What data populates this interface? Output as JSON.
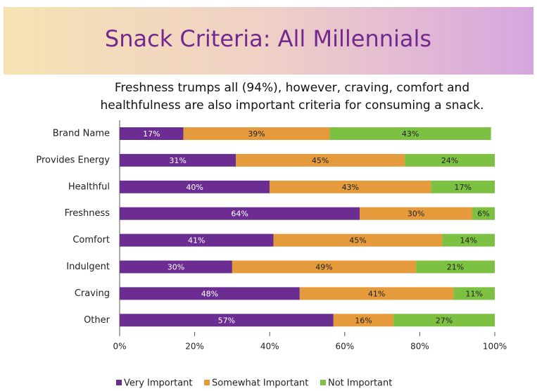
{
  "chart_data": {
    "type": "stacked_bar_horizontal",
    "title": "Snack Criteria: All Millennials",
    "subtitle": [
      "Freshness trumps all (94%), however, craving, comfort and",
      "healthfulness are also important criteria for consuming a snack."
    ],
    "categories": [
      "Brand Name",
      "Provides Energy",
      "Healthful",
      "Freshness",
      "Comfort",
      "Indulgent",
      "Craving",
      "Other"
    ],
    "series": [
      {
        "name": "Very Important",
        "color": "#6b2d91",
        "values": [
          17,
          31,
          40,
          64,
          41,
          30,
          48,
          57
        ],
        "value_labels": [
          "17%",
          "31%",
          "40%",
          "64%",
          "41%",
          "30%",
          "48%",
          "57%"
        ]
      },
      {
        "name": "Somewhat Important",
        "color": "#e59a3c",
        "values": [
          39,
          45,
          43,
          30,
          45,
          49,
          41,
          16
        ],
        "value_labels": [
          "39%",
          "45%",
          "43%",
          "30%",
          "45%",
          "49%",
          "41%",
          "16%"
        ]
      },
      {
        "name": "Not Important",
        "color": "#7cc142",
        "values": [
          43,
          24,
          17,
          6,
          14,
          21,
          11,
          27
        ],
        "value_labels": [
          "43%",
          "24%",
          "17%",
          "6%",
          "14%",
          "21%",
          "11%",
          "27%"
        ]
      }
    ],
    "xlim": [
      0,
      100
    ],
    "xticks": [
      {
        "value": 0,
        "label": "0%"
      },
      {
        "value": 20,
        "label": "20%"
      },
      {
        "value": 40,
        "label": "40%"
      },
      {
        "value": 60,
        "label": "60%"
      },
      {
        "value": 80,
        "label": "80%"
      },
      {
        "value": 100,
        "label": "100%"
      }
    ],
    "legend": "bottom"
  }
}
